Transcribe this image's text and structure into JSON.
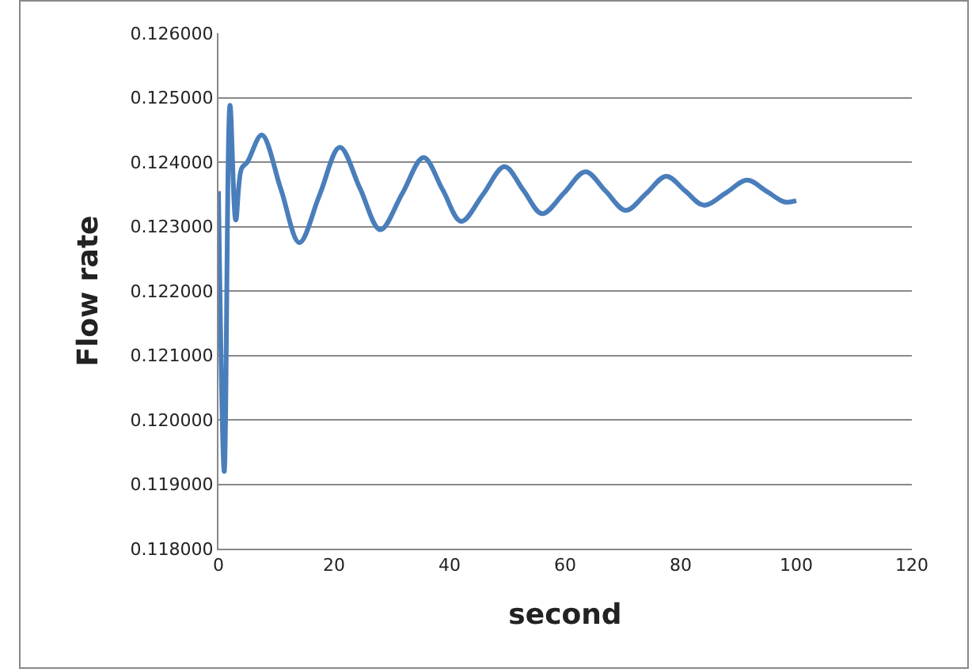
{
  "chart_data": {
    "type": "line",
    "xlabel": "second",
    "ylabel": "Flow rate",
    "x": [
      0,
      1,
      2,
      3,
      4,
      5,
      7.5,
      10.8,
      14,
      17.5,
      21,
      24.5,
      28,
      31.8,
      35.5,
      38.8,
      42,
      45.8,
      49.5,
      52.8,
      56,
      59.8,
      63.5,
      67,
      70.5,
      74,
      77.5,
      80.8,
      84,
      87.8,
      91.5,
      94.8,
      98,
      100
    ],
    "series": [
      {
        "color": "#4a7ebb",
        "values": [
          0.12355,
          0.1192,
          0.12488,
          0.1231,
          0.1239,
          0.124,
          0.12442,
          0.12358,
          0.12275,
          0.12349,
          0.12423,
          0.12359,
          0.12295,
          0.12351,
          0.12407,
          0.12357,
          0.12308,
          0.1235,
          0.12393,
          0.12356,
          0.1232,
          0.12352,
          0.12385,
          0.12355,
          0.12325,
          0.12351,
          0.12378,
          0.12355,
          0.12333,
          0.12352,
          0.12372,
          0.12355,
          0.12338,
          0.1234
        ]
      }
    ],
    "xlim": [
      0,
      120
    ],
    "xticks": [
      0,
      20,
      40,
      60,
      80,
      100,
      120
    ],
    "ylim": [
      0.118,
      0.126
    ],
    "yticks": [
      {
        "value": 0.118,
        "label": "0.118000"
      },
      {
        "value": 0.119,
        "label": "0.119000"
      },
      {
        "value": 0.12,
        "label": "0.120000"
      },
      {
        "value": 0.121,
        "label": "0.121000"
      },
      {
        "value": 0.122,
        "label": "0.122000"
      },
      {
        "value": 0.123,
        "label": "0.123000"
      },
      {
        "value": 0.124,
        "label": "0.124000"
      },
      {
        "value": 0.125,
        "label": "0.125000"
      },
      {
        "value": 0.126,
        "label": "0.126000"
      }
    ],
    "grid": "y",
    "marker": "none",
    "line_style": "solid"
  }
}
